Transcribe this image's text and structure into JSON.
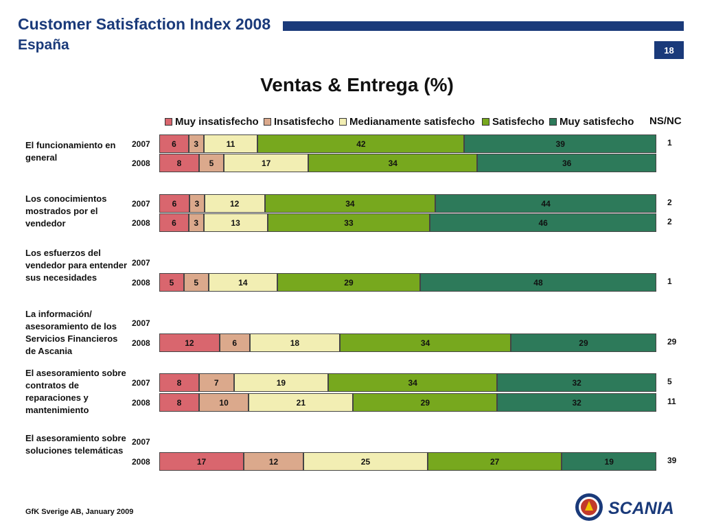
{
  "header": {
    "title": "Customer Satisfaction Index 2008",
    "subtitle": "España",
    "page_number": "18"
  },
  "footer": {
    "source": "GfK Sverige AB, January 2009"
  },
  "logo": {
    "text": "SCANIA"
  },
  "colors": {
    "Muy insatisfecho": "#d9666e",
    "Insatisfecho": "#dba98c",
    "Medianamente satisfecho": "#f2eeb3",
    "Satisfecho": "#77a81e",
    "Muy satisfecho": "#2d7a5a",
    "brand": "#1a3a7a"
  },
  "chart_data": {
    "type": "bar",
    "orientation": "horizontal",
    "stacked": true,
    "title": "Ventas & Entrega (%)",
    "legend_position": "top",
    "series_names": [
      "Muy insatisfecho",
      "Insatisfecho",
      "Medianamente satisfecho",
      "Satisfecho",
      "Muy satisfecho"
    ],
    "nsnc_label": "NS/NC",
    "groups": [
      {
        "label": "El funcionamiento en general",
        "rows": [
          {
            "year": "2007",
            "values": [
              6,
              3,
              11,
              42,
              39
            ],
            "nsnc": "1"
          },
          {
            "year": "2008",
            "values": [
              8,
              5,
              17,
              34,
              36
            ],
            "nsnc": ""
          }
        ]
      },
      {
        "label": "Los conocimientos mostrados por el vendedor",
        "rows": [
          {
            "year": "2007",
            "values": [
              6,
              3,
              12,
              34,
              44
            ],
            "nsnc": "2"
          },
          {
            "year": "2008",
            "values": [
              6,
              3,
              13,
              33,
              46
            ],
            "nsnc": "2"
          }
        ]
      },
      {
        "label": "Los esfuerzos del vendedor para entender sus necesidades",
        "rows": [
          {
            "year": "2007",
            "values": null,
            "nsnc": ""
          },
          {
            "year": "2008",
            "values": [
              5,
              5,
              14,
              29,
              48
            ],
            "nsnc": "1"
          }
        ]
      },
      {
        "label": "La información/ asesoramiento de los Servicios Financieros de Ascania",
        "rows": [
          {
            "year": "2007",
            "values": null,
            "nsnc": ""
          },
          {
            "year": "2008",
            "values": [
              12,
              6,
              18,
              34,
              29
            ],
            "nsnc": "29"
          }
        ]
      },
      {
        "label": "El asesoramiento sobre contratos de reparaciones y mantenimiento",
        "rows": [
          {
            "year": "2007",
            "values": [
              8,
              7,
              19,
              34,
              32
            ],
            "nsnc": "5"
          },
          {
            "year": "2008",
            "values": [
              8,
              10,
              21,
              29,
              32
            ],
            "nsnc": "11"
          }
        ]
      },
      {
        "label": "El asesoramiento sobre soluciones telemáticas",
        "rows": [
          {
            "year": "2007",
            "values": null,
            "nsnc": ""
          },
          {
            "year": "2008",
            "values": [
              17,
              12,
              25,
              27,
              19
            ],
            "nsnc": "39"
          }
        ]
      }
    ]
  }
}
